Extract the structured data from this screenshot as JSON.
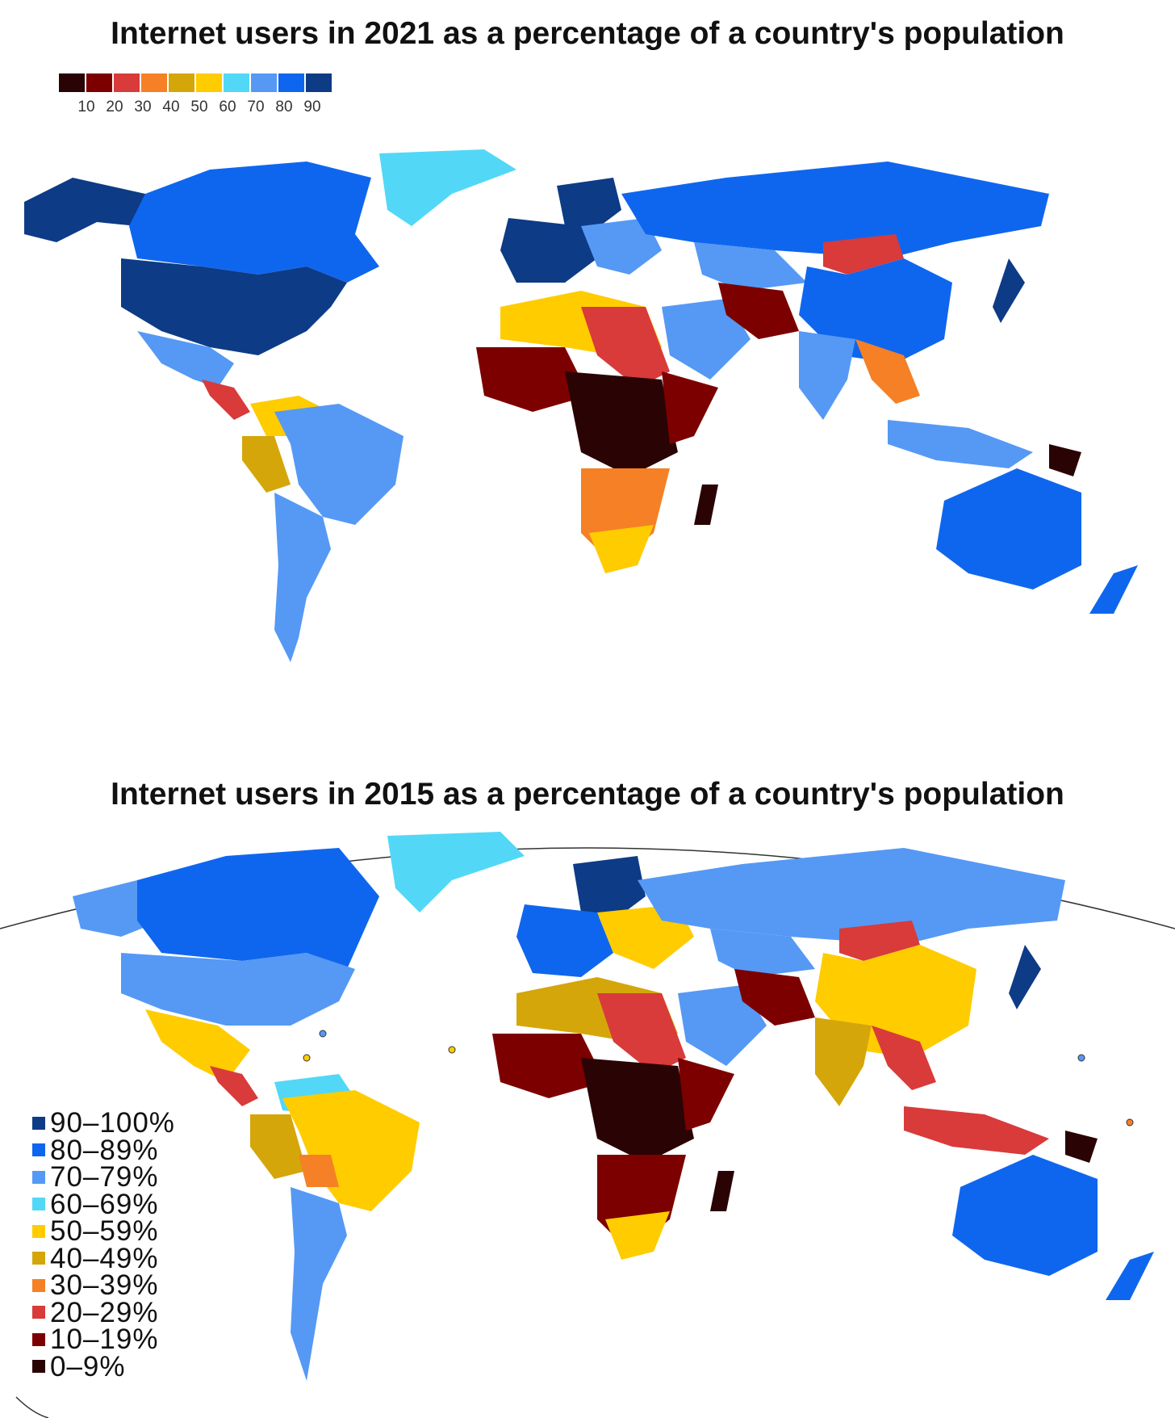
{
  "map_2021": {
    "title": "Internet users in 2021 as a percentage of a country's population",
    "scale_colors": [
      "#2a0404",
      "#7c0000",
      "#d93a3a",
      "#f58025",
      "#d4a60a",
      "#ffcc00",
      "#52d8f6",
      "#5599f5",
      "#0f66ee",
      "#0d3b86"
    ],
    "scale_ticks": [
      "10",
      "20",
      "30",
      "40",
      "50",
      "60",
      "70",
      "80",
      "90"
    ]
  },
  "map_2015": {
    "title": "Internet users in 2015 as a percentage of a country's population",
    "legend": [
      {
        "label": "90–100%",
        "color": "#0d3b86"
      },
      {
        "label": "80–89%",
        "color": "#0f66ee"
      },
      {
        "label": "70–79%",
        "color": "#5599f5"
      },
      {
        "label": "60–69%",
        "color": "#52d8f6"
      },
      {
        "label": "50–59%",
        "color": "#ffcc00"
      },
      {
        "label": "40–49%",
        "color": "#d4a60a"
      },
      {
        "label": "30–39%",
        "color": "#f58025"
      },
      {
        "label": "20–29%",
        "color": "#d93a3a"
      },
      {
        "label": "10–19%",
        "color": "#7c0000"
      },
      {
        "label": "0–9%",
        "color": "#2a0404"
      }
    ]
  }
}
